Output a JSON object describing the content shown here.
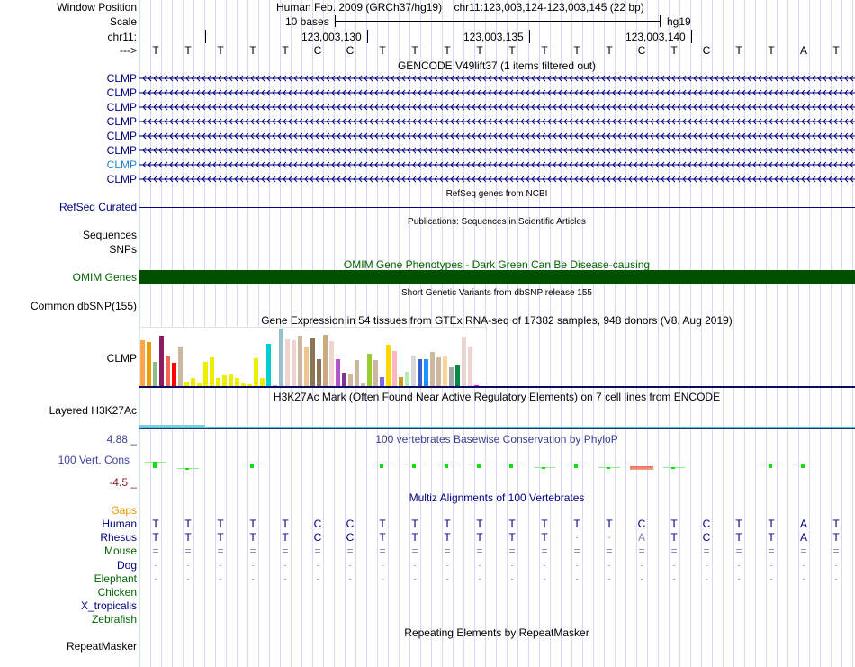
{
  "header": {
    "window_position_label": "Window Position",
    "scale_label": "Scale",
    "chrom_label": "chr11:",
    "strand_label": "--->",
    "assembly": "Human Feb. 2009 (GRCh37/hg19)",
    "position": "chr11:123,003,124-123,003,145 (22 bp)",
    "scale_text": "10 bases",
    "scale_db": "hg19",
    "ticks": [
      "123,003,130",
      "123,003,135",
      "123,003,140"
    ]
  },
  "sequence": [
    "T",
    "T",
    "T",
    "T",
    "T",
    "C",
    "C",
    "T",
    "T",
    "T",
    "T",
    "T",
    "T",
    "T",
    "T",
    "C",
    "T",
    "C",
    "T",
    "T",
    "A",
    "T"
  ],
  "gencode": {
    "title": "GENCODE V49lift37 (1 items filtered out)",
    "genes": [
      "CLMP",
      "CLMP",
      "CLMP",
      "CLMP",
      "CLMP",
      "CLMP",
      "CLMP",
      "CLMP"
    ]
  },
  "refseq": {
    "title": "RefSeq genes from NCBI",
    "label": "RefSeq Curated"
  },
  "publications": {
    "title": "Publications: Sequences in Scientific Articles",
    "label1": "Sequences",
    "label2": "SNPs"
  },
  "omim": {
    "title": "OMIM Gene Phenotypes - Dark Green Can Be Disease-causing",
    "label": "OMIM Genes"
  },
  "dbsnp": {
    "title": "Short Genetic Variants from dbSNP release 155",
    "label": "Common dbSNP(155)"
  },
  "gtex": {
    "title": "Gene Expression in 54 tissues from GTEx RNA-seq of 17382 samples, 948 donors (V8, Aug 2019)",
    "label": "CLMP",
    "values": [
      155,
      148,
      82,
      169,
      101,
      77,
      133,
      14,
      28,
      8,
      82,
      97,
      28,
      37,
      40,
      28,
      10,
      7,
      92,
      28,
      142,
      4,
      193,
      158,
      155,
      169,
      133,
      160,
      91,
      172,
      151,
      91,
      46,
      40,
      88,
      10,
      109,
      88,
      31,
      139,
      118,
      31,
      49,
      103,
      91,
      91,
      115,
      97,
      100,
      64,
      70,
      166,
      133,
      4
    ],
    "colors": [
      "#FFA54F",
      "#EE9A00",
      "#8FBC8F",
      "#8B1C62",
      "#EE6A50",
      "#FF0000",
      "#CDB79E",
      "#EEEE00",
      "#EEEE00",
      "#EEEE00",
      "#EEEE00",
      "#EEEE00",
      "#EEEE00",
      "#EEEE00",
      "#EEEE00",
      "#EEEE00",
      "#EEEE00",
      "#EEEE00",
      "#EEEE00",
      "#EEEE00",
      "#00CED1",
      "#DDA0DD",
      "#9AC0CD",
      "#EED5D2",
      "#EED5D2",
      "#CDB79E",
      "#EEC591",
      "#8B7355",
      "#8B7355",
      "#CDAA7D",
      "#EED5D2",
      "#B452CD",
      "#7A378B",
      "#CDB79E",
      "#CDB79E",
      "#CDB79E",
      "#9ACD32",
      "#CDB79E",
      "#7B68EE",
      "#FFD700",
      "#FFB6C1",
      "#CD9B1D",
      "#B4EEB4",
      "#D9D9D9",
      "#3A5FCD",
      "#1E90FF",
      "#CDB79E",
      "#CDB79E",
      "#FFD39B",
      "#A6A6A6",
      "#008B45",
      "#EED5D2",
      "#EED5D2",
      "#FF00FF"
    ]
  },
  "h3k27ac": {
    "title": "H3K27Ac Mark (Often Found Near Active Regulatory Elements) on 7 cell lines from ENCODE",
    "label": "Layered H3K27Ac"
  },
  "phylop": {
    "title": "100 vertebrates Basewise Conservation by PhyloP",
    "label": "100 Vert. Cons",
    "max": "4.88 _",
    "min": "-4.5 _",
    "values": [
      1.5,
      -0.4,
      null,
      1.0,
      null,
      null,
      null,
      0.8,
      0.8,
      0.8,
      0.8,
      0.8,
      0.1,
      0.8,
      0.1,
      -0.6,
      0.1,
      null,
      null,
      0.8,
      0.8,
      null
    ]
  },
  "multiz": {
    "title": "Multiz Alignments of 100 Vertebrates",
    "gaps_label": "Gaps",
    "species": [
      {
        "name": "Human",
        "color": "#000080",
        "bases": [
          "T",
          "T",
          "T",
          "T",
          "T",
          "C",
          "C",
          "T",
          "T",
          "T",
          "T",
          "T",
          "T",
          "T",
          "T",
          "C",
          "T",
          "C",
          "T",
          "T",
          "A",
          "T"
        ]
      },
      {
        "name": "Rhesus",
        "color": "#000080",
        "bases": [
          "T",
          "T",
          "T",
          "T",
          "T",
          "C",
          "C",
          "T",
          "T",
          "T",
          "T",
          "T",
          "T",
          "-",
          "-",
          "A",
          "T",
          "C",
          "T",
          "T",
          "A",
          "T"
        ]
      },
      {
        "name": "Mouse",
        "color": "#006400",
        "bases": [
          "=",
          "=",
          "=",
          "=",
          "=",
          "=",
          "=",
          "=",
          "=",
          "=",
          "=",
          "=",
          "=",
          "=",
          "=",
          "=",
          "=",
          "=",
          "=",
          "=",
          "=",
          "="
        ]
      },
      {
        "name": "Dog",
        "color": "#000080",
        "bases": [
          "-",
          "-",
          "-",
          "-",
          "-",
          "-",
          "-",
          "-",
          "-",
          "-",
          "-",
          "-",
          "-",
          "-",
          "-",
          "-",
          "-",
          "-",
          "-",
          "-",
          "-",
          "-"
        ]
      },
      {
        "name": "Elephant",
        "color": "#006400",
        "bases": [
          "-",
          "-",
          "-",
          "-",
          "-",
          "-",
          "-",
          "-",
          "-",
          "-",
          "-",
          "-",
          "-",
          "-",
          "-",
          "-",
          "-",
          "-",
          "-",
          "-",
          "-",
          "-"
        ]
      },
      {
        "name": "Chicken",
        "color": "#006400",
        "bases": []
      },
      {
        "name": "X_tropicalis",
        "color": "#000080",
        "bases": []
      },
      {
        "name": "Zebrafish",
        "color": "#006400",
        "bases": []
      }
    ]
  },
  "repeatmasker": {
    "title": "Repeating Elements by RepeatMasker",
    "label": "RepeatMasker"
  }
}
